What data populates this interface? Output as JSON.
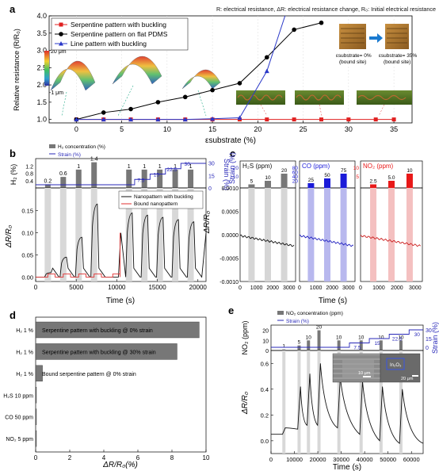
{
  "figure": {
    "note": "R: electrical resistance, ΔR: electrical resistance change, R₀: Initial electrical resistance"
  },
  "chart_data": [
    {
      "panel": "a",
      "type": "line",
      "ylabel": "Relative resistance (R/R₀)",
      "xlabel": "εsubstrate (%)",
      "xlim": [
        -3,
        37
      ],
      "ylim": [
        0.9,
        4.0
      ],
      "xticks": [
        0,
        5,
        10,
        15,
        20,
        25,
        30,
        35
      ],
      "yticks": [
        1.0,
        1.5,
        2.0,
        2.5,
        3.0,
        3.5,
        4.0
      ],
      "legend": "top-left",
      "series": [
        {
          "name": "Serpentine pattern with buckling",
          "color": "#e02020",
          "marker": "square",
          "x": [
            0,
            3,
            6,
            9,
            12,
            15,
            18,
            21,
            24,
            27,
            30,
            33,
            35
          ],
          "y": [
            1.0,
            1.0,
            1.0,
            1.0,
            1.0,
            1.0,
            1.0,
            1.0,
            1.0,
            1.0,
            1.0,
            1.0,
            1.0
          ]
        },
        {
          "name": "Serpentine pattern on flat PDMS",
          "color": "#000000",
          "marker": "circle",
          "x": [
            0,
            3,
            6,
            9,
            12,
            15,
            18,
            21,
            24,
            27
          ],
          "y": [
            1.0,
            1.2,
            1.3,
            1.5,
            1.65,
            1.85,
            2.05,
            2.8,
            3.6,
            3.8
          ]
        },
        {
          "name": "Line pattern with buckling",
          "color": "#2a38c8",
          "marker": "triangle",
          "x": [
            0,
            3,
            6,
            9,
            12,
            15,
            18,
            21,
            23
          ],
          "y": [
            1.0,
            1.0,
            1.0,
            1.0,
            1.0,
            1.02,
            1.05,
            2.4,
            4.0
          ]
        }
      ],
      "insets": {
        "colorbar_top": "20 μm",
        "colorbar_bottom": "-1 μm",
        "strain_left": "εsubstrate= 0%",
        "strain_right": "εsubstrate= 35%",
        "bound_left": "(bound site)",
        "bound_right": "(bound site)"
      }
    },
    {
      "panel": "b",
      "type": "line",
      "xlabel": "Time (s)",
      "ylabel": "ΔR/R₀",
      "xlim": [
        0,
        21000
      ],
      "xticks": [
        0,
        5000,
        10000,
        15000,
        20000
      ],
      "yticks": [
        0.0,
        0.05,
        0.1,
        0.15
      ],
      "top_ylabel": "H₂ (%)",
      "top_y2label": "Strain (%)",
      "top_yticks": [
        0.4,
        0.8,
        1.2
      ],
      "top_y2ticks": [
        0,
        15,
        30
      ],
      "top_legend": [
        "H₂ concentration (%)",
        "Strain (%)"
      ],
      "h2_pulses": {
        "t": [
          1500,
          3400,
          5300,
          7200,
          11500,
          13400,
          15300,
          17200,
          19100
        ],
        "values": [
          0.2,
          0.6,
          1,
          1.4,
          1,
          1,
          1,
          1,
          1
        ],
        "labels": [
          "0.2",
          "0.6",
          "1",
          "1.4",
          "1",
          "1",
          "1",
          "1",
          "1"
        ]
      },
      "strain_labels": [
        "7.5",
        "15",
        "22.5",
        "30"
      ],
      "series": [
        {
          "name": "Nanopattern with buckling",
          "color": "#111111"
        },
        {
          "name": "Bound nanopattern",
          "color": "#e03030"
        }
      ]
    },
    {
      "panel": "c",
      "type": "line",
      "xlabel": "Time (s)",
      "ylabel": "ΔR/R₀",
      "yticks": [
        -0.001,
        -0.0005,
        0.0,
        0.0005,
        0.001
      ],
      "ytick_labels": [
        "-0.0010",
        "-0.0005",
        "0.0000",
        "0.0005",
        "0.0010"
      ],
      "xticks": [
        0,
        1000,
        2000,
        3000
      ],
      "subpanels": [
        {
          "gas": "H₂S (ppm)",
          "bars": [
            5,
            10,
            20
          ],
          "labels": [
            "5",
            "10",
            "20"
          ],
          "color": "#777777",
          "band": "#d6d6d6",
          "line": "#111111",
          "yticks": [
            "10",
            "20"
          ]
        },
        {
          "gas": "CO (ppm)",
          "bars": [
            25,
            50,
            75
          ],
          "labels": [
            "25",
            "50",
            "75"
          ],
          "color": "#1a1ad8",
          "band": "#b8b8ee",
          "line": "#2020c0",
          "yticks": [
            "20",
            "40",
            "60",
            "80"
          ]
        },
        {
          "gas": "NO₂ (ppm)",
          "bars": [
            2.5,
            5.0,
            10
          ],
          "labels": [
            "2.5",
            "5.0",
            "10"
          ],
          "color": "#e81818",
          "band": "#f4c0c0",
          "line": "#cc2020",
          "yticks": [
            "5",
            "10"
          ]
        }
      ],
      "top_y2label": "Strain (%)",
      "top_y2ticks": [
        0,
        10,
        20,
        30
      ]
    },
    {
      "panel": "d",
      "type": "bar",
      "orientation": "horizontal",
      "xlabel": "ΔR/R₀(%)",
      "xlim": [
        0,
        10
      ],
      "xticks": [
        0,
        2,
        4,
        6,
        8,
        10
      ],
      "categories": [
        "H₂ 1 %",
        "H₂ 1 %",
        "H₂ 1 %",
        "H₂S 10 ppm",
        "CO 50 ppm",
        "NO₂ 5 ppm"
      ],
      "values": [
        9.6,
        8.3,
        0.4,
        0.02,
        0.02,
        0.02
      ],
      "bar_labels": [
        "Serpentine pattern with buckling @ 0% strain",
        "Serpentine pattern with buckling @ 30% strain",
        "Bound serpentine pattern @ 0% strain",
        "",
        "",
        ""
      ]
    },
    {
      "panel": "e",
      "type": "line",
      "xlabel": "Time (s)",
      "ylabel": "ΔR/R₀",
      "xlim": [
        0,
        65000
      ],
      "xticks": [
        0,
        10000,
        20000,
        30000,
        40000,
        50000,
        60000
      ],
      "yticks": [
        0.0,
        0.2,
        0.4,
        0.6
      ],
      "top_ylabel": "NO₂ (ppm)",
      "top_y2label": "Strain (%)",
      "top_yticks": [
        0,
        10,
        20
      ],
      "top_y2ticks": [
        0,
        15,
        30
      ],
      "top_legend": [
        "NO₂ concentration (ppm)",
        "Strain (%)"
      ],
      "no2_pulses": {
        "t": [
          5500,
          12000,
          16000,
          20500,
          29000,
          38500,
          47000,
          55500
        ],
        "values": [
          1,
          5,
          10,
          20,
          10,
          10,
          10,
          10
        ],
        "labels": [
          "1",
          "5",
          "10",
          "20",
          "10",
          "10",
          "10",
          "10"
        ]
      },
      "strain_labels": [
        "7.5",
        "15",
        "22.5",
        "30"
      ],
      "inset_labels": [
        "In₂O₃",
        "10 μm",
        "20 μm"
      ]
    }
  ]
}
